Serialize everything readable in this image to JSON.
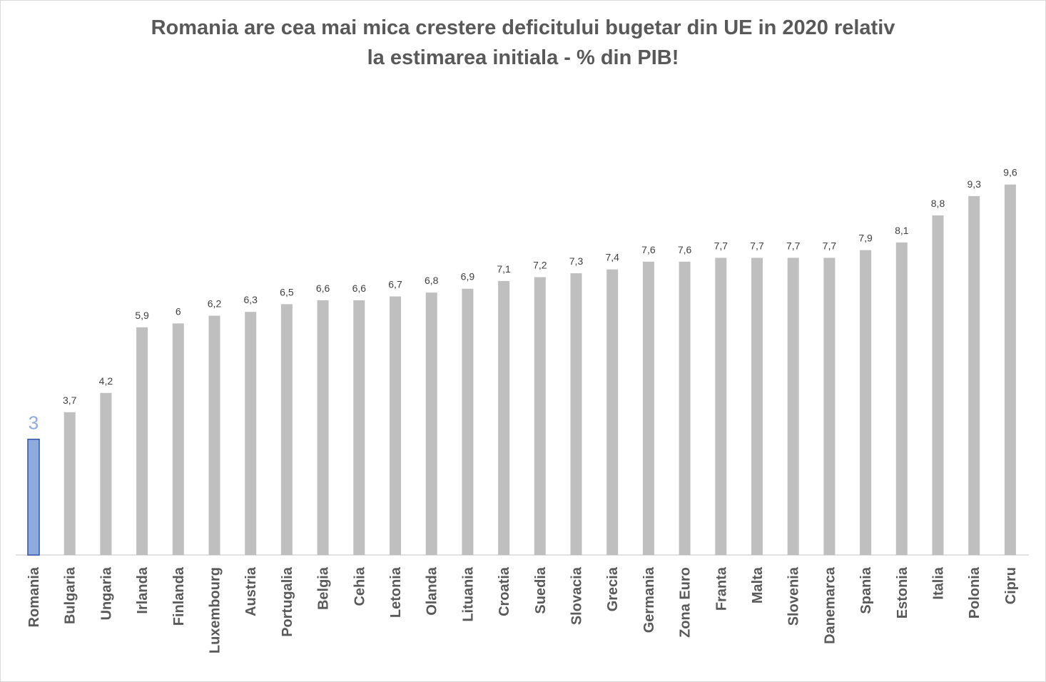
{
  "chart_data": {
    "type": "bar",
    "title_lines": [
      "Romania are cea mai mica crestere deficitului bugetar din UE in 2020 relativ",
      "la estimarea initiala - % din PIB!"
    ],
    "xlabel": "",
    "ylabel": "",
    "ylim": [
      0,
      10
    ],
    "grid": false,
    "legend": "none",
    "categories": [
      "Romania",
      "Bulgaria",
      "Ungaria",
      "Irlanda",
      "Finlanda",
      "Luxembourg",
      "Austria",
      "Portugalia",
      "Belgia",
      "Cehia",
      "Letonia",
      "Olanda",
      "Lituania",
      "Croatia",
      "Suedia",
      "Slovacia",
      "Grecia",
      "Germania",
      "Zona Euro",
      "Franta",
      "Malta",
      "Slovenia",
      "Danemarca",
      "Spania",
      "Estonia",
      "Italia",
      "Polonia",
      "Cipru"
    ],
    "values": [
      3,
      3.7,
      4.2,
      5.9,
      6,
      6.2,
      6.3,
      6.5,
      6.6,
      6.6,
      6.7,
      6.8,
      6.9,
      7.1,
      7.2,
      7.3,
      7.4,
      7.6,
      7.6,
      7.7,
      7.7,
      7.7,
      7.7,
      7.9,
      8.1,
      8.8,
      9.3,
      9.6
    ],
    "data_labels": [
      "3",
      "3,7",
      "4,2",
      "5,9",
      "6",
      "6,2",
      "6,3",
      "6,5",
      "6,6",
      "6,6",
      "6,7",
      "6,8",
      "6,9",
      "7,1",
      "7,2",
      "7,3",
      "7,4",
      "7,6",
      "7,6",
      "7,7",
      "7,7",
      "7,7",
      "7,7",
      "7,9",
      "8,1",
      "8,8",
      "9,3",
      "9,6"
    ],
    "highlight_index": 0,
    "colors": {
      "bar": "#bfbfbf",
      "highlight_fill": "#8faadc",
      "highlight_stroke": "#2f55a4",
      "axis": "#d9d9d9"
    }
  }
}
